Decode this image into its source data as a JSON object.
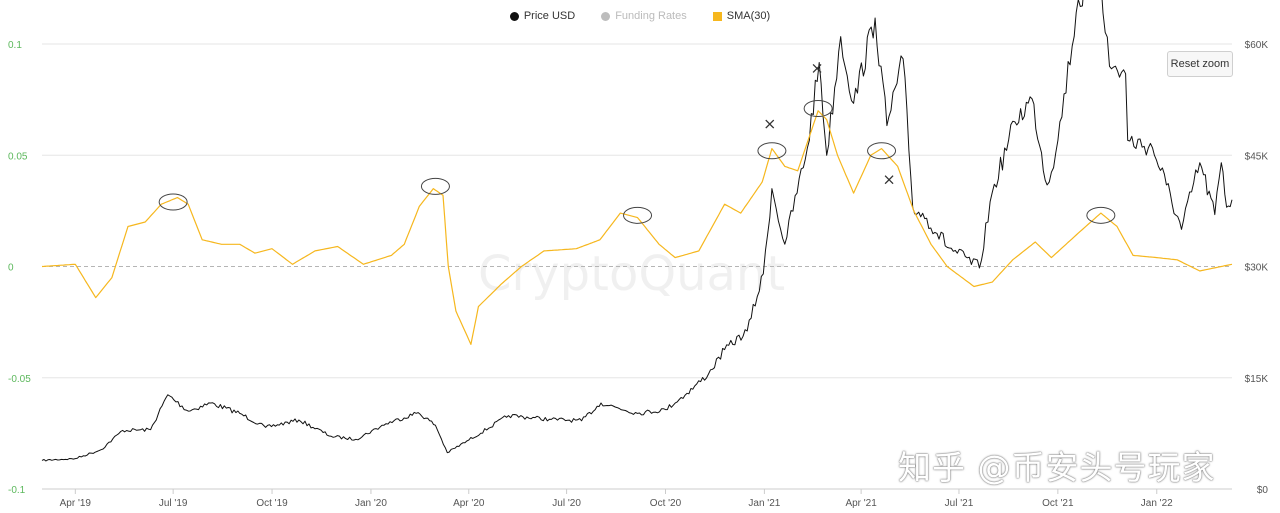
{
  "legend": {
    "price": {
      "label": "Price USD",
      "color": "#111111"
    },
    "funding": {
      "label": "Funding Rates",
      "color": "#bdbdbd",
      "hidden": true
    },
    "sma": {
      "label": "SMA(30)",
      "color": "#f6b71e"
    }
  },
  "reset_zoom_label": "Reset zoom",
  "watermark_text": "知乎 @币安头号玩家",
  "brand_watermark": "CryptoQuant",
  "chart_data": {
    "type": "line",
    "x_ticks": [
      "Apr '19",
      "Jul '19",
      "Oct '19",
      "Jan '20",
      "Apr '20",
      "Jul '20",
      "Oct '20",
      "Jan '21",
      "Apr '21",
      "Jul '21",
      "Oct '21",
      "Jan '22"
    ],
    "x_tick_dates": [
      "2019-04-01",
      "2019-07-01",
      "2019-10-01",
      "2020-01-01",
      "2020-04-01",
      "2020-07-01",
      "2020-10-01",
      "2021-01-01",
      "2021-04-01",
      "2021-07-01",
      "2021-10-01",
      "2022-01-01"
    ],
    "x_range": [
      "2019-03-01",
      "2022-03-12"
    ],
    "y_left": {
      "ticks": [
        "0.1",
        "0.05",
        "0",
        "-0.05",
        "-0.1"
      ],
      "values": [
        0.1,
        0.05,
        0,
        -0.05,
        -0.1
      ],
      "range": [
        -0.1,
        0.1
      ],
      "color": "#5cb85c"
    },
    "y_right": {
      "ticks": [
        "$60K",
        "$45K",
        "$30K",
        "$15K",
        "$0"
      ],
      "values": [
        60000,
        45000,
        30000,
        15000,
        0
      ],
      "range": [
        0,
        60000
      ]
    },
    "series": [
      {
        "name": "Price USD",
        "axis": "right",
        "color": "#111111",
        "points": [
          [
            "2019-03-01",
            3850
          ],
          [
            "2019-04-01",
            4100
          ],
          [
            "2019-04-25",
            5300
          ],
          [
            "2019-05-15",
            7900
          ],
          [
            "2019-06-10",
            8000
          ],
          [
            "2019-06-26",
            12700
          ],
          [
            "2019-07-15",
            10500
          ],
          [
            "2019-08-05",
            11600
          ],
          [
            "2019-09-01",
            10200
          ],
          [
            "2019-09-25",
            8300
          ],
          [
            "2019-10-26",
            9300
          ],
          [
            "2019-11-25",
            7100
          ],
          [
            "2019-12-18",
            6700
          ],
          [
            "2020-01-15",
            8800
          ],
          [
            "2020-02-14",
            10300
          ],
          [
            "2020-03-01",
            8600
          ],
          [
            "2020-03-12",
            4900
          ],
          [
            "2020-04-01",
            6600
          ],
          [
            "2020-05-08",
            9900
          ],
          [
            "2020-06-15",
            9400
          ],
          [
            "2020-07-15",
            9200
          ],
          [
            "2020-08-02",
            11600
          ],
          [
            "2020-09-05",
            10200
          ],
          [
            "2020-10-01",
            10700
          ],
          [
            "2020-10-21",
            12900
          ],
          [
            "2020-11-10",
            15500
          ],
          [
            "2020-11-25",
            18800
          ],
          [
            "2020-12-16",
            21300
          ],
          [
            "2020-12-31",
            29000
          ],
          [
            "2021-01-08",
            40500
          ],
          [
            "2021-01-20",
            33000
          ],
          [
            "2021-02-10",
            46000
          ],
          [
            "2021-02-21",
            57500
          ],
          [
            "2021-02-28",
            45000
          ],
          [
            "2021-03-13",
            61000
          ],
          [
            "2021-03-25",
            52000
          ],
          [
            "2021-04-14",
            63500
          ],
          [
            "2021-04-25",
            49000
          ],
          [
            "2021-05-10",
            58000
          ],
          [
            "2021-05-19",
            38000
          ],
          [
            "2021-06-01",
            36500
          ],
          [
            "2021-06-22",
            32500
          ],
          [
            "2021-07-20",
            29800
          ],
          [
            "2021-08-01",
            40000
          ],
          [
            "2021-08-22",
            49500
          ],
          [
            "2021-09-07",
            52600
          ],
          [
            "2021-09-21",
            41000
          ],
          [
            "2021-10-01",
            47000
          ],
          [
            "2021-10-20",
            66000
          ],
          [
            "2021-11-10",
            68500
          ],
          [
            "2021-11-18",
            57000
          ],
          [
            "2021-12-03",
            56000
          ],
          [
            "2021-12-05",
            47000
          ],
          [
            "2021-12-28",
            46000
          ],
          [
            "2022-01-10",
            41000
          ],
          [
            "2022-01-24",
            35000
          ],
          [
            "2022-02-10",
            44000
          ],
          [
            "2022-02-24",
            37000
          ],
          [
            "2022-03-02",
            44000
          ],
          [
            "2022-03-07",
            38000
          ],
          [
            "2022-03-12",
            39000
          ]
        ]
      },
      {
        "name": "SMA(30)",
        "axis": "left",
        "color": "#f6b71e",
        "points": [
          [
            "2019-03-01",
            0.0
          ],
          [
            "2019-04-01",
            0.001
          ],
          [
            "2019-04-20",
            -0.014
          ],
          [
            "2019-05-05",
            -0.005
          ],
          [
            "2019-05-20",
            0.018
          ],
          [
            "2019-06-05",
            0.02
          ],
          [
            "2019-06-20",
            0.028
          ],
          [
            "2019-07-05",
            0.031
          ],
          [
            "2019-07-15",
            0.028
          ],
          [
            "2019-07-28",
            0.012
          ],
          [
            "2019-08-15",
            0.01
          ],
          [
            "2019-09-01",
            0.01
          ],
          [
            "2019-09-15",
            0.006
          ],
          [
            "2019-10-01",
            0.008
          ],
          [
            "2019-10-20",
            0.001
          ],
          [
            "2019-11-10",
            0.007
          ],
          [
            "2019-12-01",
            0.009
          ],
          [
            "2019-12-25",
            0.001
          ],
          [
            "2020-01-20",
            0.005
          ],
          [
            "2020-02-01",
            0.01
          ],
          [
            "2020-02-15",
            0.027
          ],
          [
            "2020-02-28",
            0.035
          ],
          [
            "2020-03-08",
            0.032
          ],
          [
            "2020-03-13",
            0.0
          ],
          [
            "2020-03-20",
            -0.02
          ],
          [
            "2020-04-03",
            -0.035
          ],
          [
            "2020-04-10",
            -0.018
          ],
          [
            "2020-05-01",
            -0.008
          ],
          [
            "2020-05-20",
            0.0
          ],
          [
            "2020-06-10",
            0.007
          ],
          [
            "2020-07-10",
            0.008
          ],
          [
            "2020-08-01",
            0.012
          ],
          [
            "2020-08-20",
            0.024
          ],
          [
            "2020-09-05",
            0.022
          ],
          [
            "2020-09-25",
            0.01
          ],
          [
            "2020-10-10",
            0.004
          ],
          [
            "2020-11-01",
            0.007
          ],
          [
            "2020-11-25",
            0.028
          ],
          [
            "2020-12-10",
            0.024
          ],
          [
            "2020-12-30",
            0.038
          ],
          [
            "2021-01-08",
            0.053
          ],
          [
            "2021-01-20",
            0.045
          ],
          [
            "2021-02-01",
            0.043
          ],
          [
            "2021-02-20",
            0.07
          ],
          [
            "2021-02-28",
            0.066
          ],
          [
            "2021-03-10",
            0.05
          ],
          [
            "2021-03-25",
            0.033
          ],
          [
            "2021-04-10",
            0.05
          ],
          [
            "2021-04-20",
            0.053
          ],
          [
            "2021-05-05",
            0.045
          ],
          [
            "2021-05-20",
            0.025
          ],
          [
            "2021-06-05",
            0.01
          ],
          [
            "2021-06-20",
            0.0
          ],
          [
            "2021-07-15",
            -0.009
          ],
          [
            "2021-08-01",
            -0.007
          ],
          [
            "2021-08-20",
            0.003
          ],
          [
            "2021-09-10",
            0.011
          ],
          [
            "2021-09-25",
            0.004
          ],
          [
            "2021-10-20",
            0.015
          ],
          [
            "2021-11-10",
            0.024
          ],
          [
            "2021-11-25",
            0.018
          ],
          [
            "2021-12-10",
            0.005
          ],
          [
            "2022-01-01",
            0.004
          ],
          [
            "2022-01-20",
            0.003
          ],
          [
            "2022-02-10",
            -0.002
          ],
          [
            "2022-03-12",
            0.001
          ]
        ]
      }
    ],
    "annotations": {
      "circles": [
        {
          "date": "2019-07-01",
          "value": 0.029
        },
        {
          "date": "2020-03-01",
          "value": 0.036
        },
        {
          "date": "2020-09-05",
          "value": 0.023
        },
        {
          "date": "2021-01-08",
          "value": 0.052
        },
        {
          "date": "2021-02-20",
          "value": 0.071
        },
        {
          "date": "2021-04-20",
          "value": 0.052
        },
        {
          "date": "2021-11-10",
          "value": 0.023
        }
      ],
      "crosses": [
        {
          "date": "2021-01-06",
          "value": 0.064
        },
        {
          "date": "2021-02-19",
          "value": 0.089
        },
        {
          "date": "2021-04-27",
          "value": 0.039
        }
      ]
    },
    "zero_line": {
      "value": 0,
      "style": "dashed"
    }
  }
}
